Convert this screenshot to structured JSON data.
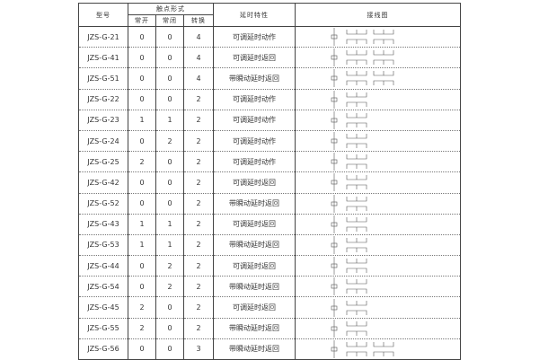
{
  "headers": {
    "model": "型号",
    "contact_form": "触点形式",
    "no": "常开",
    "nc": "常闭",
    "changeover": "转换",
    "delay": "延时特性",
    "wiring": "接线图"
  },
  "rows": [
    {
      "model": "JZS-G-21",
      "no": "0",
      "nc": "0",
      "co": "4",
      "delay": "可调延时动作"
    },
    {
      "model": "JZS-G-41",
      "no": "0",
      "nc": "0",
      "co": "4",
      "delay": "可调延时返回"
    },
    {
      "model": "JZS-G-51",
      "no": "0",
      "nc": "0",
      "co": "4",
      "delay": "带瞬动延时返回"
    },
    {
      "model": "JZS-G-22",
      "no": "0",
      "nc": "0",
      "co": "2",
      "delay": "可调延时动作"
    },
    {
      "model": "JZS-G-23",
      "no": "1",
      "nc": "1",
      "co": "2",
      "delay": "可调延时动作"
    },
    {
      "model": "JZS-G-24",
      "no": "0",
      "nc": "2",
      "co": "2",
      "delay": "可调延时动作"
    },
    {
      "model": "JZS-G-25",
      "no": "2",
      "nc": "0",
      "co": "2",
      "delay": "可调延时动作"
    },
    {
      "model": "JZS-G-42",
      "no": "0",
      "nc": "0",
      "co": "2",
      "delay": "可调延时返回"
    },
    {
      "model": "JZS-G-52",
      "no": "0",
      "nc": "0",
      "co": "2",
      "delay": "带瞬动延时返回"
    },
    {
      "model": "JZS-G-43",
      "no": "1",
      "nc": "1",
      "co": "2",
      "delay": "可调延时返回"
    },
    {
      "model": "JZS-G-53",
      "no": "1",
      "nc": "1",
      "co": "2",
      "delay": "带瞬动延时返回"
    },
    {
      "model": "JZS-G-44",
      "no": "0",
      "nc": "2",
      "co": "2",
      "delay": "可调延时返回"
    },
    {
      "model": "JZS-G-54",
      "no": "0",
      "nc": "2",
      "co": "2",
      "delay": "带瞬动延时返回"
    },
    {
      "model": "JZS-G-45",
      "no": "2",
      "nc": "0",
      "co": "2",
      "delay": "可调延时返回"
    },
    {
      "model": "JZS-G-55",
      "no": "2",
      "nc": "0",
      "co": "2",
      "delay": "带瞬动延时返回"
    },
    {
      "model": "JZS-G-56",
      "no": "0",
      "nc": "0",
      "co": "3",
      "delay": "带瞬动延时返回"
    }
  ]
}
